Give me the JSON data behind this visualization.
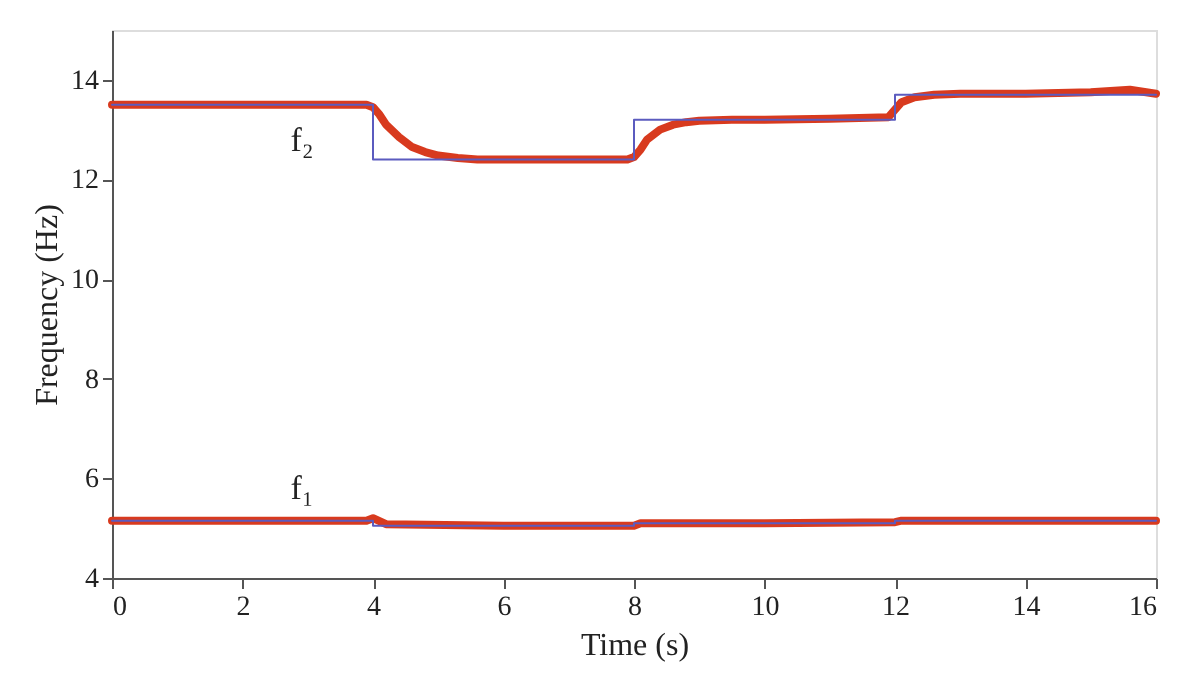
{
  "chart_data": {
    "type": "line",
    "xlabel": "Time (s)",
    "ylabel": "Frequency (Hz)",
    "xlim": [
      0,
      16
    ],
    "ylim": [
      4,
      15
    ],
    "xticks": [
      0,
      2,
      4,
      6,
      8,
      10,
      12,
      14,
      16
    ],
    "yticks": [
      4,
      6,
      8,
      10,
      12,
      14
    ],
    "grid": false,
    "legend": false,
    "series": [
      {
        "name": "f₂",
        "color": "#d83a1e",
        "x": [
          0,
          1,
          2,
          3,
          3.9,
          4.0,
          4.1,
          4.2,
          4.4,
          4.6,
          4.8,
          5.0,
          5.3,
          5.6,
          6,
          7,
          7.9,
          8.0,
          8.1,
          8.2,
          8.4,
          8.6,
          8.8,
          9.0,
          9.5,
          10,
          11,
          11.9,
          12.0,
          12.1,
          12.3,
          12.6,
          13,
          14,
          15,
          15.6,
          16
        ],
        "values": [
          13.5,
          13.5,
          13.5,
          13.5,
          13.5,
          13.45,
          13.3,
          13.1,
          12.85,
          12.65,
          12.55,
          12.48,
          12.43,
          12.4,
          12.4,
          12.4,
          12.4,
          12.45,
          12.6,
          12.8,
          13.0,
          13.1,
          13.15,
          13.18,
          13.2,
          13.2,
          13.22,
          13.25,
          13.4,
          13.55,
          13.65,
          13.7,
          13.72,
          13.72,
          13.75,
          13.8,
          13.72
        ]
      },
      {
        "color": "#5b5bbf",
        "x": [
          0,
          4,
          4,
          8,
          8,
          12,
          12,
          16
        ],
        "values": [
          13.5,
          13.5,
          12.4,
          12.4,
          13.2,
          13.2,
          13.7,
          13.7
        ]
      },
      {
        "name": "f₁",
        "color": "#d83a1e",
        "x": [
          0,
          2,
          3.9,
          4.0,
          4.2,
          6,
          8,
          8.1,
          10,
          12,
          12.1,
          14,
          16
        ],
        "values": [
          5.15,
          5.15,
          5.15,
          5.2,
          5.08,
          5.05,
          5.05,
          5.1,
          5.1,
          5.12,
          5.15,
          5.15,
          5.15
        ]
      },
      {
        "color": "#5b5bbf",
        "x": [
          0,
          4,
          4,
          8,
          8,
          12,
          12,
          16
        ],
        "values": [
          5.15,
          5.15,
          5.05,
          5.05,
          5.1,
          5.1,
          5.15,
          5.15
        ]
      }
    ]
  }
}
